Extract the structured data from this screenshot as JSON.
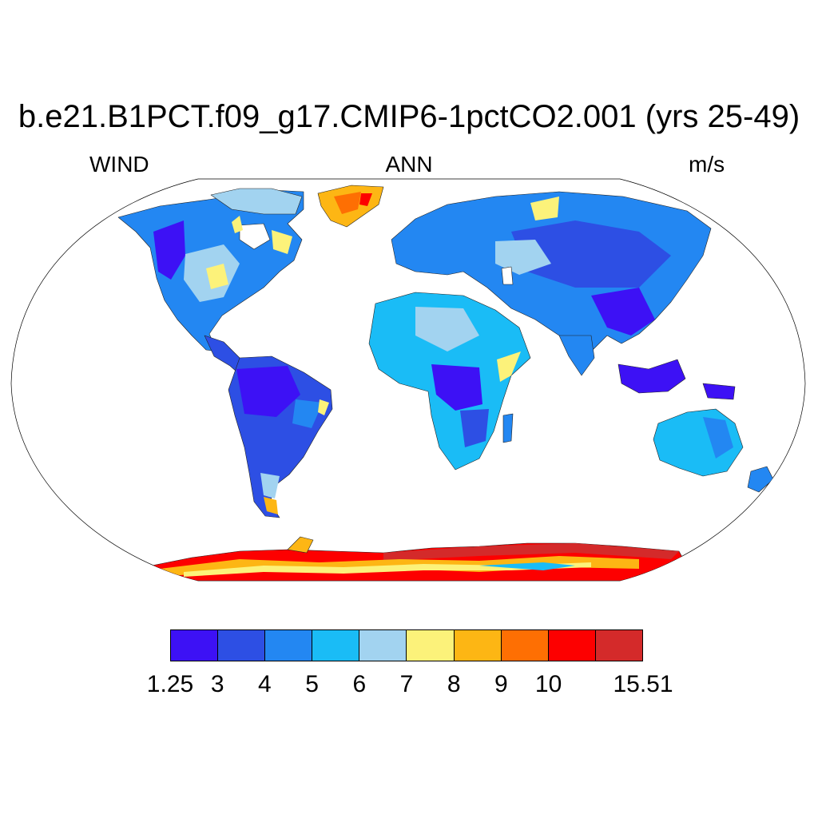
{
  "title": "b.e21.B1PCT.f09_g17.CMIP6-1pctCO2.001 (yrs 25-49)",
  "subtitle_left": "WIND",
  "subtitle_center": "ANN",
  "subtitle_right": "m/s",
  "colorbar": {
    "colors": [
      "#3d11f5",
      "#2d4fe4",
      "#2387f2",
      "#1abcf6",
      "#a2d3f0",
      "#fcf27a",
      "#fdb614",
      "#fe6f03",
      "#fd0000",
      "#d42a2a"
    ],
    "tick_labels": [
      "1.25",
      "3",
      "4",
      "5",
      "6",
      "7",
      "8",
      "9",
      "10",
      "15.51"
    ]
  }
}
